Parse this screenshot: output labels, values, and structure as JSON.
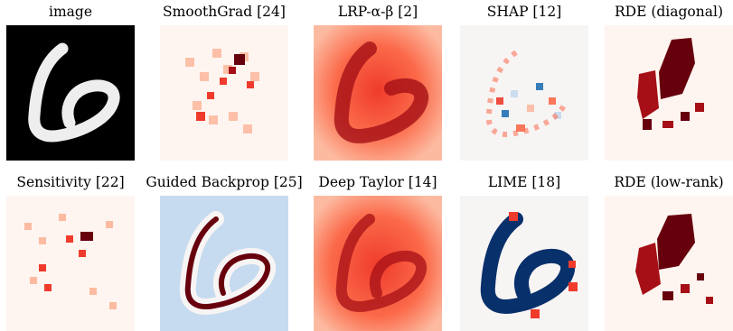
{
  "figure": {
    "row1": [
      {
        "title": "image",
        "map": "input"
      },
      {
        "title": "SmoothGrad [24]",
        "map": "smoothgrad"
      },
      {
        "title": "LRP-α-β [2]",
        "map": "lrp"
      },
      {
        "title": "SHAP [12]",
        "map": "shap"
      },
      {
        "title": "RDE (diagonal)",
        "map": "rde_diag"
      }
    ],
    "row2": [
      {
        "title": "Sensitivity [22]",
        "map": "sensitivity"
      },
      {
        "title": "Guided Backprop [25]",
        "map": "guided"
      },
      {
        "title": "Deep Taylor [14]",
        "map": "deeptaylor"
      },
      {
        "title": "LIME [18]",
        "map": "lime"
      },
      {
        "title": "RDE (low-rank)",
        "map": "rde_lowrank"
      }
    ]
  },
  "colors": {
    "black": "#000000",
    "white": "#ffffff",
    "red_dark": "#67000d",
    "red_mid": "#d42421",
    "red_light": "#fcbba1",
    "red_pale": "#fff5f0",
    "blue_dark": "#08306b",
    "blue_light": "#c6dbef",
    "neutral": "#f7f4f4"
  }
}
